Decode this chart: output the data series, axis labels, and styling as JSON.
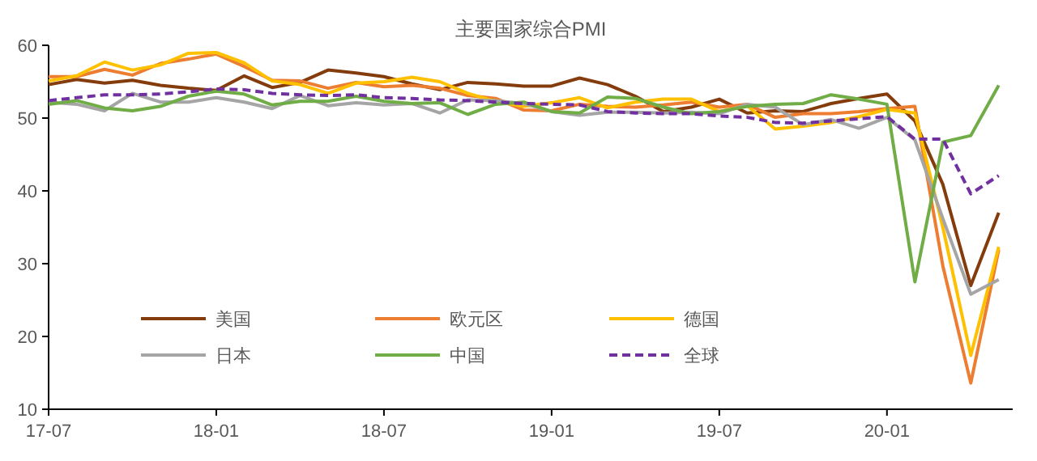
{
  "chart_data": {
    "type": "line",
    "title": "主要国家综合PMI",
    "categories": [
      "17-07",
      null,
      null,
      null,
      null,
      null,
      "18-01",
      null,
      null,
      null,
      null,
      null,
      "18-07",
      null,
      null,
      null,
      null,
      null,
      "19-01",
      null,
      null,
      null,
      null,
      null,
      "19-07",
      null,
      null,
      null,
      null,
      null,
      "20-01",
      null,
      null,
      null,
      null
    ],
    "ylim": [
      10,
      60
    ],
    "yticks": [
      10,
      20,
      30,
      40,
      50,
      60
    ],
    "grid": false,
    "legend": "bottom",
    "line_style": "solid",
    "marker": "none",
    "series": [
      {
        "name": "美国",
        "color": "#843c0c",
        "values": [
          54.6,
          55.3,
          54.8,
          55.2,
          54.5,
          54.1,
          53.8,
          55.8,
          54.2,
          54.9,
          56.6,
          56.2,
          55.7,
          54.7,
          53.9,
          54.9,
          54.7,
          54.4,
          54.4,
          55.5,
          54.6,
          53.0,
          50.9,
          51.5,
          52.6,
          50.7,
          51.0,
          50.9,
          52.0,
          52.7,
          53.3,
          49.6,
          40.9,
          27.0,
          37.0
        ]
      },
      {
        "name": "欧元区",
        "color": "#ed7d31",
        "values": [
          55.7,
          55.7,
          56.7,
          55.9,
          57.5,
          58.1,
          58.8,
          57.1,
          55.2,
          55.1,
          54.1,
          54.9,
          54.3,
          54.5,
          54.1,
          53.1,
          52.7,
          51.1,
          51.0,
          51.9,
          51.6,
          51.5,
          51.8,
          52.2,
          51.5,
          51.9,
          50.1,
          50.6,
          50.6,
          50.9,
          51.3,
          51.6,
          29.7,
          13.6,
          31.9
        ]
      },
      {
        "name": "德国",
        "color": "#ffc000",
        "values": [
          55.1,
          55.8,
          57.7,
          56.6,
          57.3,
          58.9,
          59.0,
          57.6,
          55.1,
          54.6,
          53.4,
          54.8,
          55.0,
          55.6,
          55.0,
          53.4,
          52.3,
          51.6,
          52.1,
          52.8,
          51.4,
          52.2,
          52.6,
          52.6,
          50.9,
          51.7,
          48.5,
          48.9,
          49.4,
          50.2,
          51.2,
          50.7,
          35.0,
          17.4,
          32.3
        ]
      },
      {
        "name": "日本",
        "color": "#a5a5a5",
        "values": [
          52.2,
          51.9,
          51.0,
          53.4,
          52.2,
          52.2,
          52.8,
          52.2,
          51.3,
          53.1,
          51.7,
          52.1,
          51.8,
          52.0,
          50.7,
          52.5,
          52.4,
          52.0,
          50.9,
          50.4,
          50.8,
          50.8,
          50.7,
          50.8,
          50.6,
          51.9,
          51.5,
          49.1,
          49.8,
          48.6,
          50.1,
          47.0,
          36.2,
          25.8,
          27.8
        ]
      },
      {
        "name": "中国",
        "color": "#70ad47",
        "values": [
          51.9,
          52.4,
          51.4,
          51.0,
          51.6,
          53.0,
          53.7,
          53.3,
          51.8,
          52.3,
          52.3,
          53.0,
          52.3,
          52.0,
          52.1,
          50.5,
          51.9,
          52.2,
          50.9,
          50.7,
          52.9,
          52.7,
          51.5,
          50.6,
          50.9,
          51.6,
          51.9,
          52.0,
          53.2,
          52.6,
          51.9,
          27.5,
          46.7,
          47.6,
          54.5
        ]
      },
      {
        "name": "全球",
        "color": "#7030a0",
        "line_style": "dashed",
        "values": [
          52.4,
          52.8,
          53.2,
          53.2,
          53.3,
          53.6,
          54.0,
          53.9,
          53.4,
          53.2,
          53.1,
          53.2,
          52.8,
          52.7,
          52.5,
          52.4,
          52.2,
          52.0,
          51.9,
          51.8,
          50.9,
          50.7,
          50.6,
          50.6,
          50.3,
          50.1,
          49.4,
          49.3,
          49.6,
          49.9,
          50.2,
          47.1,
          47.1,
          39.6,
          42.1
        ]
      }
    ]
  }
}
